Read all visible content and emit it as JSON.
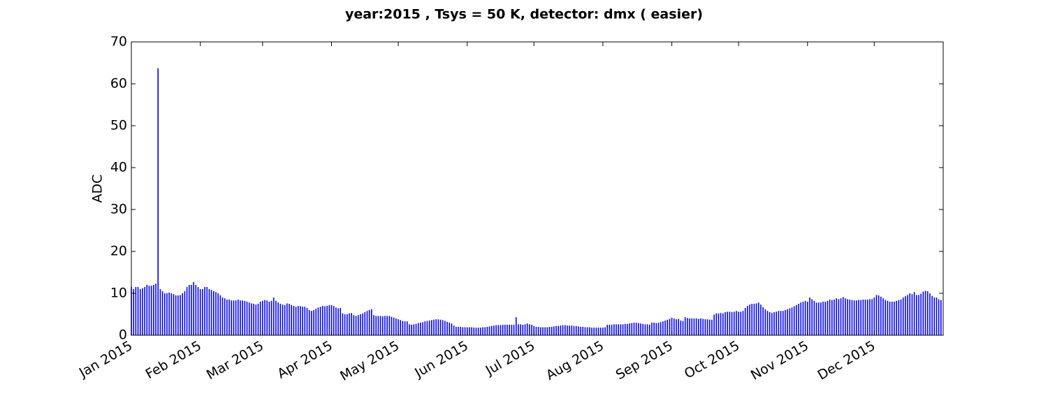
{
  "chart_data": {
    "type": "bar",
    "title": "year:2015 , Tsys = 50 K, detector: dmx ( easier)",
    "y_label": "ADC",
    "color": "#0000ff",
    "x": [
      0,
      1,
      2,
      3,
      4,
      5,
      6,
      7,
      8,
      9,
      10,
      11,
      12,
      13,
      14,
      15,
      16,
      17,
      18,
      19,
      20,
      21,
      22,
      23,
      24,
      25,
      26,
      27,
      28,
      29,
      30,
      31,
      32,
      33,
      34,
      35,
      36,
      37,
      38,
      39,
      40,
      41,
      42,
      43,
      44,
      45,
      46,
      47,
      48,
      49,
      50,
      51,
      52,
      53,
      54,
      55,
      56,
      57,
      58,
      59,
      60,
      61,
      62,
      63,
      64,
      65,
      66,
      67,
      68,
      69,
      70,
      71,
      72,
      73,
      74,
      75,
      76,
      77,
      78,
      79,
      80,
      81,
      82,
      83,
      84,
      85,
      86,
      87,
      88,
      89,
      90,
      91,
      92,
      93,
      94,
      95,
      96,
      97,
      98,
      99,
      100,
      101,
      102,
      103,
      104,
      105,
      106,
      107,
      108,
      109,
      110,
      111,
      112,
      113,
      114,
      115,
      116,
      117,
      118,
      119,
      120,
      121,
      122,
      123,
      124,
      125,
      126,
      127,
      128,
      129,
      130,
      131,
      132,
      133,
      134,
      135,
      136,
      137,
      138,
      139,
      140,
      141,
      142,
      143,
      144,
      145,
      146,
      147,
      148,
      149,
      150,
      151,
      152,
      153,
      154,
      155,
      156,
      157,
      158,
      159,
      160,
      161,
      162,
      163,
      164,
      165,
      166,
      167,
      168,
      169,
      170,
      171,
      172,
      173,
      174,
      175,
      176,
      177,
      178,
      179,
      180,
      181,
      182,
      183,
      184,
      185,
      186,
      187,
      188,
      189,
      190,
      191,
      192,
      193,
      194,
      195,
      196,
      197,
      198,
      199,
      200,
      201,
      202,
      203,
      204,
      205,
      206,
      207,
      208,
      209,
      210,
      211,
      212,
      213,
      214,
      215,
      216,
      217,
      218,
      219,
      220,
      221,
      222,
      223,
      224,
      225,
      226,
      227,
      228,
      229,
      230,
      231,
      232,
      233,
      234,
      235,
      236,
      237,
      238,
      239,
      240,
      241,
      242,
      243,
      244,
      245,
      246,
      247,
      248,
      249,
      250,
      251,
      252,
      253,
      254,
      255,
      256,
      257,
      258,
      259,
      260,
      261,
      262,
      263,
      264,
      265,
      266,
      267,
      268,
      269,
      270,
      271,
      272,
      273,
      274,
      275,
      276,
      277,
      278,
      279,
      280,
      281,
      282,
      283,
      284,
      285,
      286,
      287,
      288,
      289,
      290,
      291,
      292,
      293,
      294,
      295,
      296,
      297,
      298,
      299,
      300,
      301,
      302,
      303,
      304,
      305,
      306,
      307,
      308,
      309,
      310,
      311,
      312,
      313,
      314,
      315,
      316,
      317,
      318,
      319,
      320,
      321,
      322,
      323,
      324,
      325,
      326,
      327,
      328,
      329,
      330,
      331,
      332,
      333,
      334,
      335,
      336,
      337,
      338,
      339,
      340,
      341,
      342,
      343,
      344,
      345,
      346,
      347,
      348,
      349,
      350,
      351,
      352,
      353,
      354,
      355,
      356,
      357,
      358,
      359,
      360,
      361,
      362,
      363,
      364
    ],
    "values": [
      11.5,
      11,
      11.5,
      11.5,
      11,
      11.2,
      11.5,
      12,
      11.8,
      11.8,
      12,
      12.3,
      63.7,
      11,
      10.5,
      10,
      10,
      10.2,
      10,
      9.8,
      9.5,
      9.5,
      9.6,
      10,
      10.5,
      11.5,
      12,
      12,
      12.7,
      12,
      11.5,
      11,
      11,
      11.5,
      11.5,
      11,
      10.8,
      10.5,
      10.3,
      10,
      9.5,
      9,
      8.8,
      8.5,
      8.5,
      8.3,
      8.3,
      8.3,
      8.5,
      8.3,
      8.3,
      8.2,
      8,
      7.8,
      7.6,
      7.5,
      7.3,
      7.5,
      8,
      8.2,
      8.4,
      8.3,
      8,
      8.2,
      9,
      8.2,
      7.8,
      7.5,
      7.3,
      7.2,
      7.6,
      7.5,
      7.2,
      7,
      6.8,
      7,
      6.9,
      6.8,
      6.8,
      6.5,
      6,
      5.8,
      6,
      6.3,
      6.6,
      6.8,
      7,
      6.9,
      7,
      7.2,
      7.2,
      7,
      6.6,
      6.4,
      6.5,
      5.2,
      5,
      5,
      5.2,
      5.3,
      4.8,
      4.6,
      4.8,
      5,
      5.2,
      5.5,
      5.8,
      6,
      6.2,
      4.8,
      4.6,
      4.6,
      4.6,
      4.5,
      4.6,
      4.6,
      4.6,
      4.4,
      4.2,
      4,
      3.8,
      3.6,
      3.4,
      3.3,
      3.3,
      2.6,
      2.5,
      2.6,
      2.7,
      2.9,
      3,
      3.1,
      3.3,
      3.4,
      3.5,
      3.6,
      3.7,
      3.8,
      3.8,
      3.7,
      3.6,
      3.4,
      3.2,
      3,
      2.8,
      2.3,
      2,
      2,
      2,
      1.9,
      1.9,
      1.9,
      1.9,
      1.9,
      1.8,
      1.8,
      1.8,
      1.8,
      1.9,
      1.9,
      2,
      2.1,
      2.2,
      2.3,
      2.4,
      2.4,
      2.4,
      2.5,
      2.5,
      2.5,
      2.5,
      2.5,
      2.5,
      4.3,
      2.6,
      2.6,
      2.5,
      2.6,
      2.8,
      2.6,
      2.5,
      2.2,
      2,
      2,
      1.9,
      1.9,
      1.9,
      1.9,
      2,
      2,
      2.1,
      2.2,
      2.2,
      2.3,
      2.4,
      2.4,
      2.3,
      2.3,
      2.3,
      2.2,
      2.2,
      2.1,
      2,
      2,
      1.9,
      1.9,
      1.9,
      1.8,
      1.8,
      1.8,
      1.8,
      1.8,
      1.8,
      1.9,
      2.5,
      2.5,
      2.5,
      2.6,
      2.6,
      2.6,
      2.6,
      2.6,
      2.7,
      2.7,
      2.8,
      2.9,
      3,
      3,
      2.9,
      2.8,
      2.7,
      2.6,
      2.6,
      2.5,
      3,
      3,
      2.9,
      3,
      3.1,
      3.3,
      3.5,
      3.7,
      3.9,
      4.2,
      4,
      3.8,
      3.9,
      3.5,
      3.4,
      4.3,
      4.1,
      4,
      4,
      4,
      4,
      3.9,
      4,
      3.9,
      3.8,
      3.8,
      3.7,
      3.7,
      4.9,
      5.2,
      5.2,
      5.3,
      5.2,
      5.5,
      5.6,
      5.6,
      5.5,
      5.6,
      5.8,
      5.6,
      5.6,
      5.8,
      6.5,
      7,
      7.3,
      7.5,
      7.5,
      7.6,
      7.8,
      7.3,
      6.7,
      6.2,
      5.8,
      5.5,
      5.3,
      5.5,
      5.6,
      5.8,
      5.8,
      5.8,
      6,
      6.2,
      6.4,
      6.6,
      6.9,
      7.2,
      7.5,
      7.8,
      8,
      8.2,
      8,
      9,
      8.6,
      8.2,
      7.8,
      7.8,
      7.8,
      8,
      8,
      8.2,
      8.5,
      8.4,
      8.5,
      8.8,
      8.6,
      8.8,
      9.1,
      8.8,
      8.6,
      8.5,
      8.4,
      8.3,
      8.3,
      8.4,
      8.4,
      8.5,
      8.5,
      8.5,
      8.6,
      8.6,
      9,
      9.6,
      9.5,
      9.2,
      8.8,
      8.4,
      8.2,
      8,
      8,
      8,
      8.2,
      8.4,
      8.5,
      9,
      9.3,
      9.6,
      10,
      9.8,
      10.3,
      9.6,
      9.6,
      9.9,
      10.4,
      10.6,
      10.5,
      10,
      9.4,
      9,
      9,
      8.6,
      8.4
    ],
    "xlim": [
      0,
      365
    ],
    "xticks": [
      {
        "value": 0,
        "label": "Jan 2015"
      },
      {
        "value": 31,
        "label": "Feb 2015"
      },
      {
        "value": 59,
        "label": "Mar 2015"
      },
      {
        "value": 90,
        "label": "Apr 2015"
      },
      {
        "value": 120,
        "label": "May 2015"
      },
      {
        "value": 151,
        "label": "Jun 2015"
      },
      {
        "value": 181,
        "label": "Jul 2015"
      },
      {
        "value": 212,
        "label": "Aug 2015"
      },
      {
        "value": 243,
        "label": "Sep 2015"
      },
      {
        "value": 273,
        "label": "Oct 2015"
      },
      {
        "value": 304,
        "label": "Nov 2015"
      },
      {
        "value": 334,
        "label": "Dec 2015"
      }
    ],
    "ylim": [
      0,
      70
    ],
    "yticks": [
      0,
      10,
      20,
      30,
      40,
      50,
      60,
      70
    ]
  }
}
